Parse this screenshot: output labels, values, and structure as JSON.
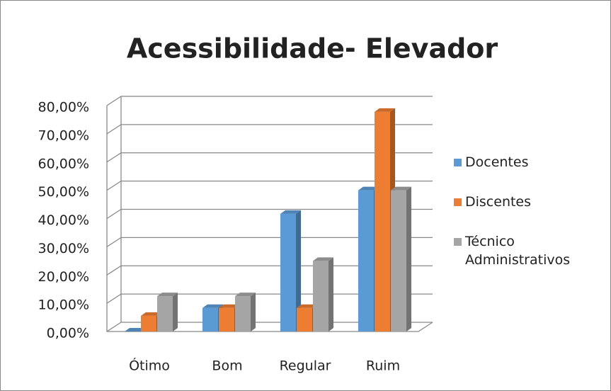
{
  "chart_data": {
    "type": "bar3d",
    "title": "Acessibilidade- Elevador",
    "categories": [
      "Ótimo",
      "Bom",
      "Regular",
      "Ruim"
    ],
    "series": [
      {
        "name": "Docentes",
        "color": "#5b9bd5",
        "values": [
          0,
          8.33,
          41.67,
          50
        ]
      },
      {
        "name": "Discentes",
        "color": "#ed7d31",
        "values": [
          5.56,
          8.33,
          8.33,
          77.78
        ]
      },
      {
        "name": "Técnico Administrativos",
        "color": "#a5a5a5",
        "values": [
          12.5,
          12.5,
          25,
          50
        ]
      }
    ],
    "ylim": [
      0,
      80
    ],
    "yticks": [
      {
        "value": 0,
        "label": "0,00%"
      },
      {
        "value": 10,
        "label": "10,00%"
      },
      {
        "value": 20,
        "label": "20,00%"
      },
      {
        "value": 30,
        "label": "30,00%"
      },
      {
        "value": 40,
        "label": "40,00%"
      },
      {
        "value": 50,
        "label": "50,00%"
      },
      {
        "value": 60,
        "label": "60,00%"
      },
      {
        "value": 70,
        "label": "70,00%"
      },
      {
        "value": 80,
        "label": "80,00%"
      }
    ],
    "grid": true,
    "legend": "right"
  }
}
